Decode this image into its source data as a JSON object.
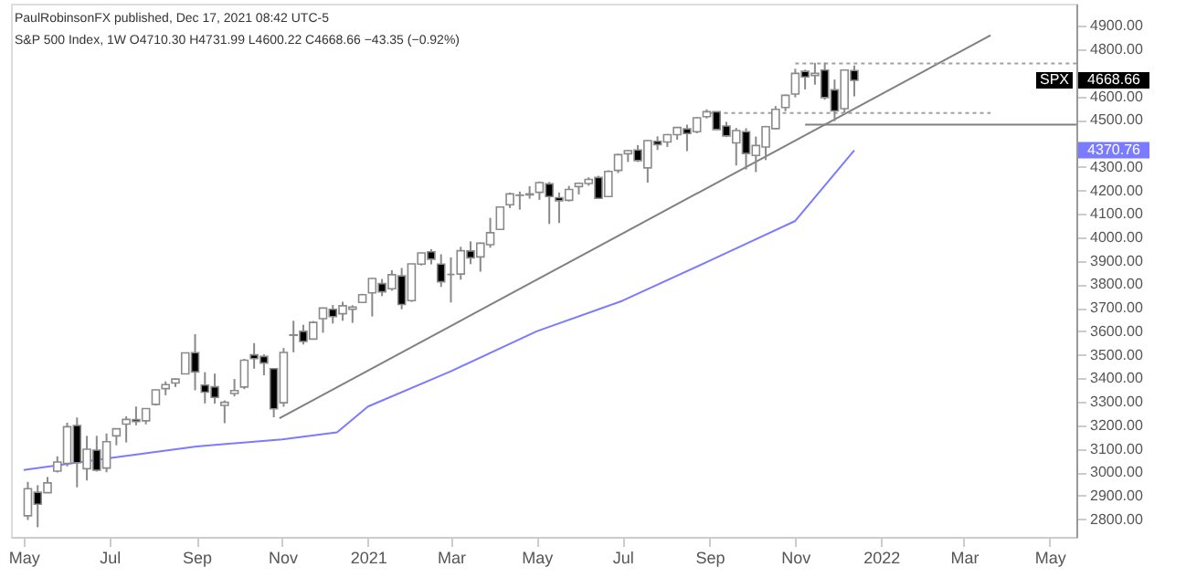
{
  "chart_data": {
    "type": "candlestick",
    "title": "PaulRobinsonFX published, Dec 17, 2021 08:42 UTC-5",
    "subtitle": "S&P 500 Index, 1W  O4710.30  H4731.99  L4600.22  C4668.66  −43.35 (−0.92%)",
    "xlim": [
      "2020-04-22",
      "2022-05-20"
    ],
    "xticks": [
      {
        "value": "2020-05-01",
        "label": "May"
      },
      {
        "value": "2020-07-01",
        "label": "Jul"
      },
      {
        "value": "2020-09-01",
        "label": "Sep"
      },
      {
        "value": "2020-11-01",
        "label": "Nov"
      },
      {
        "value": "2021-01-01",
        "label": "2021"
      },
      {
        "value": "2021-03-01",
        "label": "Mar"
      },
      {
        "value": "2021-05-01",
        "label": "May"
      },
      {
        "value": "2021-07-01",
        "label": "Jul"
      },
      {
        "value": "2021-09-01",
        "label": "Sep"
      },
      {
        "value": "2021-11-01",
        "label": "Nov"
      },
      {
        "value": "2022-01-01",
        "label": "2022"
      },
      {
        "value": "2022-03-01",
        "label": "Mar"
      },
      {
        "value": "2022-05-01",
        "label": "May"
      }
    ],
    "ylim": [
      2725,
      4995
    ],
    "yticks": [
      {
        "value": 2800,
        "label": "2800.00"
      },
      {
        "value": 2900,
        "label": "2900.00"
      },
      {
        "value": 3000,
        "label": "3000.00"
      },
      {
        "value": 3100,
        "label": "3100.00"
      },
      {
        "value": 3200,
        "label": "3200.00"
      },
      {
        "value": 3300,
        "label": "3300.00"
      },
      {
        "value": 3400,
        "label": "3400.00"
      },
      {
        "value": 3500,
        "label": "3500.00"
      },
      {
        "value": 3600,
        "label": "3600.00"
      },
      {
        "value": 3700,
        "label": "3700.00"
      },
      {
        "value": 3800,
        "label": "3800.00"
      },
      {
        "value": 3900,
        "label": "3900.00"
      },
      {
        "value": 4000,
        "label": "4000.00"
      },
      {
        "value": 4100,
        "label": "4100.00"
      },
      {
        "value": 4200,
        "label": "4200.00"
      },
      {
        "value": 4300,
        "label": "4300.00"
      },
      {
        "value": 4400,
        "label": null
      },
      {
        "value": 4500,
        "label": "4500.00"
      },
      {
        "value": 4600,
        "label": "4600.00"
      },
      {
        "value": 4700,
        "label": null
      },
      {
        "value": 4800,
        "label": "4800.00"
      },
      {
        "value": 4900,
        "label": "4900.00"
      }
    ],
    "grid": false,
    "annotations": [
      "SPX",
      "4668.66",
      "4370.76"
    ],
    "series": [
      {
        "x": [
          "2020-05-04",
          "2020-05-11",
          "2020-05-18",
          "2020-05-25",
          "2020-06-01",
          "2020-06-08",
          "2020-06-15",
          "2020-06-22",
          "2020-06-29",
          "2020-07-06",
          "2020-07-13",
          "2020-07-20",
          "2020-07-27",
          "2020-08-03",
          "2020-08-10",
          "2020-08-17",
          "2020-08-24",
          "2020-08-31",
          "2020-09-07",
          "2020-09-14",
          "2020-09-21",
          "2020-09-28",
          "2020-10-05",
          "2020-10-12",
          "2020-10-19",
          "2020-10-26",
          "2020-11-02",
          "2020-11-09",
          "2020-11-16",
          "2020-11-23",
          "2020-11-30",
          "2020-12-07",
          "2020-12-14",
          "2020-12-21",
          "2020-12-28",
          "2021-01-04",
          "2021-01-11",
          "2021-01-18",
          "2021-01-25",
          "2021-02-01",
          "2021-02-08",
          "2021-02-15",
          "2021-02-22",
          "2021-03-01",
          "2021-03-08",
          "2021-03-15",
          "2021-03-22",
          "2021-03-29",
          "2021-04-05",
          "2021-04-12",
          "2021-04-19",
          "2021-04-26",
          "2021-05-03",
          "2021-05-10",
          "2021-05-17",
          "2021-05-24",
          "2021-05-31",
          "2021-06-07",
          "2021-06-14",
          "2021-06-21",
          "2021-06-28",
          "2021-07-05",
          "2021-07-12",
          "2021-07-19",
          "2021-07-26",
          "2021-08-02",
          "2021-08-09",
          "2021-08-16",
          "2021-08-23",
          "2021-08-30",
          "2021-09-06",
          "2021-09-13",
          "2021-09-20",
          "2021-09-27",
          "2021-10-04",
          "2021-10-11",
          "2021-10-18",
          "2021-10-25",
          "2021-11-01",
          "2021-11-08",
          "2021-11-15",
          "2021-11-22",
          "2021-11-29",
          "2021-12-06",
          "2021-12-13"
        ],
        "ohlc": [
          [
            2815,
            2959,
            2797,
            2930
          ],
          [
            2915,
            2945,
            2766,
            2864
          ],
          [
            2913,
            2980,
            2913,
            2955
          ],
          [
            3005,
            3068,
            2999,
            3044
          ],
          [
            3038,
            3211,
            3025,
            3194
          ],
          [
            3199,
            3233,
            2936,
            3041
          ],
          [
            3015,
            3155,
            2965,
            3098
          ],
          [
            3094,
            3155,
            3003,
            3009
          ],
          [
            3018,
            3165,
            3000,
            3130
          ],
          [
            3155,
            3186,
            3115,
            3185
          ],
          [
            3205,
            3238,
            3127,
            3225
          ],
          [
            3224,
            3280,
            3200,
            3216
          ],
          [
            3219,
            3272,
            3204,
            3271
          ],
          [
            3289,
            3352,
            3284,
            3351
          ],
          [
            3356,
            3387,
            3328,
            3373
          ],
          [
            3380,
            3399,
            3363,
            3397
          ],
          [
            3419,
            3509,
            3417,
            3508
          ],
          [
            3509,
            3588,
            3349,
            3427
          ],
          [
            3371,
            3426,
            3293,
            3341
          ],
          [
            3364,
            3420,
            3292,
            3319
          ],
          [
            3285,
            3306,
            3209,
            3298
          ],
          [
            3335,
            3397,
            3323,
            3348
          ],
          [
            3363,
            3483,
            3354,
            3477
          ],
          [
            3500,
            3550,
            3441,
            3484
          ],
          [
            3493,
            3502,
            3413,
            3465
          ],
          [
            3441,
            3441,
            3234,
            3270
          ],
          [
            3296,
            3529,
            3279,
            3510
          ],
          [
            3583,
            3645,
            3511,
            3585
          ],
          [
            3600,
            3628,
            3544,
            3557
          ],
          [
            3567,
            3644,
            3567,
            3638
          ],
          [
            3654,
            3699,
            3594,
            3699
          ],
          [
            3694,
            3712,
            3633,
            3663
          ],
          [
            3675,
            3726,
            3645,
            3709
          ],
          [
            3694,
            3711,
            3636,
            3703
          ],
          [
            3723,
            3760,
            3723,
            3756
          ],
          [
            3764,
            3827,
            3663,
            3825
          ],
          [
            3803,
            3823,
            3750,
            3768
          ],
          [
            3781,
            3860,
            3773,
            3841
          ],
          [
            3836,
            3870,
            3694,
            3714
          ],
          [
            3731,
            3887,
            3725,
            3887
          ],
          [
            3886,
            3935,
            3880,
            3934
          ],
          [
            3939,
            3950,
            3885,
            3907
          ],
          [
            3886,
            3928,
            3789,
            3811
          ],
          [
            3842,
            3915,
            3723,
            3842
          ],
          [
            3844,
            3960,
            3820,
            3943
          ],
          [
            3942,
            3983,
            3886,
            3913
          ],
          [
            3917,
            3978,
            3854,
            3975
          ],
          [
            3969,
            4083,
            3956,
            4020
          ],
          [
            4034,
            4130,
            4034,
            4129
          ],
          [
            4139,
            4191,
            4125,
            4185
          ],
          [
            4179,
            4195,
            4118,
            4180
          ],
          [
            4185,
            4218,
            4165,
            4181
          ],
          [
            4192,
            4238,
            4160,
            4233
          ],
          [
            4228,
            4236,
            4057,
            4174
          ],
          [
            4169,
            4191,
            4061,
            4156
          ],
          [
            4158,
            4219,
            4153,
            4204
          ],
          [
            4216,
            4234,
            4183,
            4230
          ],
          [
            4229,
            4256,
            4220,
            4247
          ],
          [
            4255,
            4262,
            4165,
            4166
          ],
          [
            4174,
            4286,
            4174,
            4281
          ],
          [
            4285,
            4356,
            4274,
            4352
          ],
          [
            4356,
            4372,
            4321,
            4369
          ],
          [
            4372,
            4393,
            4321,
            4327
          ],
          [
            4296,
            4415,
            4233,
            4412
          ],
          [
            4409,
            4430,
            4372,
            4395
          ],
          [
            4406,
            4440,
            4385,
            4437
          ],
          [
            4437,
            4468,
            4416,
            4468
          ],
          [
            4462,
            4480,
            4367,
            4442
          ],
          [
            4450,
            4513,
            4443,
            4509
          ],
          [
            4514,
            4545,
            4506,
            4535
          ],
          [
            4535,
            4535,
            4457,
            4459
          ],
          [
            4474,
            4492,
            4427,
            4432
          ],
          [
            4402,
            4466,
            4306,
            4455
          ],
          [
            4450,
            4465,
            4289,
            4357
          ],
          [
            4349,
            4429,
            4278,
            4391
          ],
          [
            4385,
            4475,
            4329,
            4471
          ],
          [
            4463,
            4559,
            4460,
            4545
          ],
          [
            4553,
            4608,
            4537,
            4605
          ],
          [
            4610,
            4718,
            4596,
            4698
          ],
          [
            4707,
            4714,
            4630,
            4683
          ],
          [
            4689,
            4743,
            4650,
            4698
          ],
          [
            4712,
            4744,
            4586,
            4595
          ],
          [
            4628,
            4672,
            4495,
            4538
          ],
          [
            4548,
            4713,
            4532,
            4712
          ],
          [
            4710.3,
            4731.99,
            4600.22,
            4668.66
          ]
        ]
      },
      {
        "type": "line",
        "color": "#7b7bff",
        "line_style": "solid",
        "x": [
          "2020-05-01",
          "2020-07-01",
          "2020-09-01",
          "2020-11-01",
          "2020-12-10",
          "2021-01-01",
          "2021-03-01",
          "2021-05-01",
          "2021-07-01",
          "2021-09-01",
          "2021-11-01",
          "2021-12-13"
        ],
        "values": [
          3010,
          3060,
          3110,
          3140,
          3170,
          3280,
          3430,
          3600,
          3730,
          3900,
          4070,
          4370.76
        ]
      },
      {
        "type": "line",
        "color": "#808080",
        "line_style": "solid",
        "x": [
          "2020-10-30",
          "2022-03-20"
        ],
        "values": [
          3230,
          4860
        ]
      },
      {
        "type": "line",
        "color": "#a0a0a0",
        "line_style": "dotted",
        "x": [
          "2021-11-01",
          "2022-05-20"
        ],
        "values": [
          4740,
          4740
        ]
      },
      {
        "type": "line",
        "color": "#a0a0a0",
        "line_style": "dotted",
        "x": [
          "2021-09-01",
          "2022-03-20"
        ],
        "values": [
          4530,
          4530
        ]
      },
      {
        "type": "line",
        "color": "#808080",
        "line_style": "solid",
        "x": [
          "2021-11-08",
          "2022-05-20"
        ],
        "values": [
          4480,
          4480
        ]
      }
    ]
  }
}
